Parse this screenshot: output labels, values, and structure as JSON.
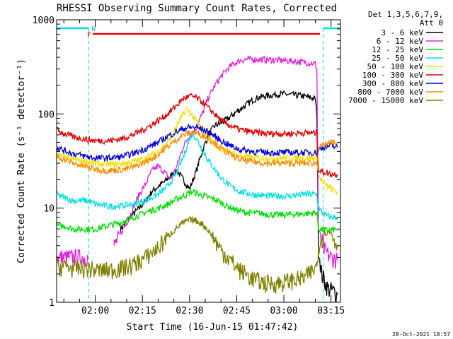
{
  "chart_data": {
    "type": "line",
    "title": "RHESSI Observing Summary Count Rates, Corrected",
    "xlabel": "Start Time (16-Jun-15 01:47:42)",
    "ylabel": "Corrected Count Rate (s⁻¹ detector⁻¹)",
    "yscale": "log",
    "ylim": [
      1,
      1000
    ],
    "xlim": [
      107.7,
      198
    ],
    "x_unit": "minutes after 00:00 UT",
    "x_ticks": [
      {
        "label": "02:00",
        "value": 120
      },
      {
        "label": "02:15",
        "value": 135
      },
      {
        "label": "02:30",
        "value": 150
      },
      {
        "label": "02:45",
        "value": 165
      },
      {
        "label": "03:00",
        "value": 180
      },
      {
        "label": "03:15",
        "value": 195
      }
    ],
    "y_ticks": [
      {
        "label": "1",
        "value": 1
      },
      {
        "label": "10",
        "value": 10
      },
      {
        "label": "100",
        "value": 100
      },
      {
        "label": "1000",
        "value": 1000
      }
    ],
    "legend_header": [
      "Det 1,3,5,6,7,9,",
      "Att 0"
    ],
    "legend_position": "top-right",
    "timestamp": "28-Oct-2021 18:57",
    "flag_labels": {
      "flare": "F",
      "night": "N"
    },
    "night_intervals": [
      [
        107.7,
        117.9
      ],
      [
        192.5,
        198
      ]
    ],
    "flare_interval": [
      119.2,
      191.5
    ],
    "series": [
      {
        "name": "3 - 6 keV",
        "color": "#000000",
        "points": [
          [
            128,
            6
          ],
          [
            131,
            8
          ],
          [
            134,
            10
          ],
          [
            136,
            12
          ],
          [
            138,
            15
          ],
          [
            140,
            17
          ],
          [
            142,
            19
          ],
          [
            144,
            22
          ],
          [
            146,
            25
          ],
          [
            148,
            20
          ],
          [
            150,
            16
          ],
          [
            152,
            24
          ],
          [
            154,
            40
          ],
          [
            156,
            60
          ],
          [
            158,
            75
          ],
          [
            160,
            80
          ],
          [
            162,
            88
          ],
          [
            164,
            100
          ],
          [
            166,
            112
          ],
          [
            168,
            125
          ],
          [
            170,
            140
          ],
          [
            172,
            150
          ],
          [
            174,
            155
          ],
          [
            176,
            158
          ],
          [
            178,
            162
          ],
          [
            180,
            163
          ],
          [
            182,
            160
          ],
          [
            184,
            158
          ],
          [
            186,
            155
          ],
          [
            188,
            150
          ],
          [
            190,
            145
          ],
          [
            190.5,
            95
          ],
          [
            191,
            4
          ],
          [
            192,
            2
          ],
          [
            194,
            1.4
          ],
          [
            196,
            1.3
          ],
          [
            197,
            1.2
          ]
        ]
      },
      {
        "name": "6 - 12 keV",
        "color": "#e020e0",
        "points": [
          [
            107.7,
            3
          ],
          [
            110,
            3
          ],
          [
            112,
            3
          ],
          [
            114,
            3
          ],
          [
            116,
            3
          ],
          [
            117.9,
            3
          ],
          [
            126,
            4
          ],
          [
            130,
            7
          ],
          [
            132,
            10
          ],
          [
            134,
            14
          ],
          [
            136,
            18
          ],
          [
            138,
            25
          ],
          [
            140,
            28
          ],
          [
            142,
            24
          ],
          [
            144,
            20
          ],
          [
            146,
            28
          ],
          [
            148,
            45
          ],
          [
            150,
            60
          ],
          [
            152,
            70
          ],
          [
            154,
            100
          ],
          [
            156,
            150
          ],
          [
            158,
            200
          ],
          [
            160,
            250
          ],
          [
            162,
            300
          ],
          [
            164,
            340
          ],
          [
            166,
            370
          ],
          [
            168,
            380
          ],
          [
            172,
            380
          ],
          [
            176,
            375
          ],
          [
            180,
            370
          ],
          [
            184,
            360
          ],
          [
            188,
            350
          ],
          [
            190,
            340
          ],
          [
            190.5,
            300
          ],
          [
            191,
            6
          ],
          [
            193,
            3.5
          ],
          [
            195,
            3
          ],
          [
            197,
            2.8
          ]
        ]
      },
      {
        "name": "12 - 25 keV",
        "color": "#00e000",
        "points": [
          [
            107.7,
            6.5
          ],
          [
            110,
            6.5
          ],
          [
            113,
            6
          ],
          [
            116,
            6
          ],
          [
            117.9,
            6
          ],
          [
            120,
            6
          ],
          [
            124,
            6.5
          ],
          [
            128,
            7
          ],
          [
            132,
            8
          ],
          [
            136,
            9
          ],
          [
            140,
            10
          ],
          [
            143,
            11
          ],
          [
            146,
            12.5
          ],
          [
            149,
            14
          ],
          [
            151,
            15
          ],
          [
            153,
            14
          ],
          [
            156,
            13
          ],
          [
            159,
            12
          ],
          [
            162,
            10.5
          ],
          [
            165,
            9.5
          ],
          [
            168,
            9
          ],
          [
            172,
            8.8
          ],
          [
            176,
            8.5
          ],
          [
            180,
            8.5
          ],
          [
            184,
            8.6
          ],
          [
            188,
            8.8
          ],
          [
            190.5,
            9
          ],
          [
            191,
            6
          ],
          [
            193,
            5.8
          ],
          [
            195,
            5.8
          ],
          [
            197,
            6
          ]
        ]
      },
      {
        "name": "25 - 50 keV",
        "color": "#00e0e0",
        "points": [
          [
            107.7,
            14
          ],
          [
            110,
            13
          ],
          [
            113,
            12
          ],
          [
            116,
            12
          ],
          [
            117.9,
            12
          ],
          [
            120,
            11
          ],
          [
            124,
            10.5
          ],
          [
            128,
            10.5
          ],
          [
            132,
            11
          ],
          [
            136,
            12
          ],
          [
            140,
            14
          ],
          [
            143,
            17
          ],
          [
            146,
            24
          ],
          [
            148,
            35
          ],
          [
            150,
            55
          ],
          [
            151,
            62
          ],
          [
            152,
            56
          ],
          [
            154,
            42
          ],
          [
            156,
            32
          ],
          [
            158,
            26
          ],
          [
            160,
            21
          ],
          [
            163,
            17
          ],
          [
            166,
            15
          ],
          [
            170,
            14
          ],
          [
            174,
            13.5
          ],
          [
            178,
            13.5
          ],
          [
            182,
            13.5
          ],
          [
            186,
            14
          ],
          [
            188,
            14
          ],
          [
            190.5,
            14
          ],
          [
            191,
            10
          ],
          [
            193,
            8.5
          ],
          [
            195,
            8
          ],
          [
            197,
            8
          ]
        ]
      },
      {
        "name": "50 - 100 keV",
        "color": "#f0e000",
        "points": [
          [
            107.7,
            37
          ],
          [
            110,
            35
          ],
          [
            113,
            33
          ],
          [
            116,
            32
          ],
          [
            117.9,
            31
          ],
          [
            120,
            30
          ],
          [
            124,
            29
          ],
          [
            128,
            29.5
          ],
          [
            132,
            31
          ],
          [
            136,
            34
          ],
          [
            140,
            40
          ],
          [
            143,
            50
          ],
          [
            146,
            75
          ],
          [
            148,
            100
          ],
          [
            149,
            115
          ],
          [
            150,
            105
          ],
          [
            152,
            85
          ],
          [
            154,
            70
          ],
          [
            156,
            58
          ],
          [
            158,
            49
          ],
          [
            160,
            43
          ],
          [
            163,
            39
          ],
          [
            166,
            36
          ],
          [
            170,
            34
          ],
          [
            174,
            34
          ],
          [
            178,
            34
          ],
          [
            182,
            34
          ],
          [
            186,
            34
          ],
          [
            188,
            34
          ],
          [
            190.5,
            34
          ],
          [
            191,
            22
          ],
          [
            193,
            18
          ],
          [
            195,
            16
          ],
          [
            197,
            15
          ]
        ]
      },
      {
        "name": "100 - 300 keV",
        "color": "#e00000",
        "points": [
          [
            107.7,
            68
          ],
          [
            110,
            62
          ],
          [
            113,
            57
          ],
          [
            116,
            55
          ],
          [
            117.9,
            53
          ],
          [
            120,
            52
          ],
          [
            124,
            52
          ],
          [
            128,
            54
          ],
          [
            132,
            60
          ],
          [
            136,
            70
          ],
          [
            140,
            85
          ],
          [
            143,
            100
          ],
          [
            146,
            125
          ],
          [
            148,
            145
          ],
          [
            150,
            155
          ],
          [
            152,
            150
          ],
          [
            154,
            135
          ],
          [
            156,
            115
          ],
          [
            158,
            100
          ],
          [
            160,
            85
          ],
          [
            163,
            75
          ],
          [
            166,
            68
          ],
          [
            170,
            64
          ],
          [
            174,
            62
          ],
          [
            178,
            62
          ],
          [
            182,
            62
          ],
          [
            186,
            63
          ],
          [
            188,
            63
          ],
          [
            190.5,
            63
          ],
          [
            191,
            25
          ],
          [
            193,
            24
          ],
          [
            195,
            23
          ],
          [
            197,
            23
          ]
        ]
      },
      {
        "name": "300 - 800 keV",
        "color": "#0000e0",
        "points": [
          [
            107.7,
            44
          ],
          [
            110,
            41
          ],
          [
            113,
            38
          ],
          [
            116,
            36
          ],
          [
            117.9,
            35
          ],
          [
            120,
            34
          ],
          [
            124,
            34
          ],
          [
            128,
            35
          ],
          [
            132,
            38
          ],
          [
            136,
            43
          ],
          [
            140,
            50
          ],
          [
            143,
            58
          ],
          [
            146,
            65
          ],
          [
            148,
            70
          ],
          [
            150,
            72
          ],
          [
            152,
            72
          ],
          [
            154,
            69
          ],
          [
            156,
            64
          ],
          [
            158,
            58
          ],
          [
            160,
            52
          ],
          [
            163,
            46
          ],
          [
            166,
            42
          ],
          [
            170,
            40
          ],
          [
            174,
            39
          ],
          [
            178,
            39
          ],
          [
            182,
            39
          ],
          [
            186,
            39
          ],
          [
            188,
            39
          ],
          [
            190.5,
            39
          ],
          [
            191,
            42
          ],
          [
            193,
            45
          ],
          [
            195,
            46
          ],
          [
            197,
            44
          ]
        ]
      },
      {
        "name": "800 - 7000 keV",
        "color": "#ff8c00",
        "points": [
          [
            107.7,
            36
          ],
          [
            110,
            33
          ],
          [
            113,
            30
          ],
          [
            116,
            28
          ],
          [
            117.9,
            27
          ],
          [
            120,
            26
          ],
          [
            124,
            25
          ],
          [
            128,
            25.5
          ],
          [
            132,
            27
          ],
          [
            136,
            31
          ],
          [
            140,
            37
          ],
          [
            143,
            45
          ],
          [
            146,
            54
          ],
          [
            148,
            60
          ],
          [
            150,
            63
          ],
          [
            152,
            63
          ],
          [
            154,
            60
          ],
          [
            156,
            55
          ],
          [
            158,
            49
          ],
          [
            160,
            43
          ],
          [
            163,
            37
          ],
          [
            166,
            33
          ],
          [
            170,
            31
          ],
          [
            174,
            30
          ],
          [
            178,
            30
          ],
          [
            182,
            30
          ],
          [
            186,
            30
          ],
          [
            188,
            30
          ],
          [
            190.5,
            30
          ],
          [
            191,
            43
          ],
          [
            193,
            47
          ],
          [
            195,
            50
          ],
          [
            197,
            49
          ]
        ]
      },
      {
        "name": "7000 - 15000 keV",
        "color": "#808000",
        "points": [
          [
            107.7,
            2.4
          ],
          [
            110,
            2.4
          ],
          [
            113,
            2.3
          ],
          [
            116,
            2.3
          ],
          [
            117.9,
            2.3
          ],
          [
            120,
            2.2
          ],
          [
            124,
            2.2
          ],
          [
            128,
            2.3
          ],
          [
            132,
            2.5
          ],
          [
            136,
            3
          ],
          [
            140,
            3.8
          ],
          [
            143,
            5
          ],
          [
            146,
            6.2
          ],
          [
            148,
            7
          ],
          [
            150,
            7.5
          ],
          [
            152,
            7.4
          ],
          [
            154,
            6.8
          ],
          [
            156,
            5.8
          ],
          [
            158,
            4.6
          ],
          [
            160,
            3.6
          ],
          [
            163,
            2.8
          ],
          [
            166,
            2.2
          ],
          [
            170,
            1.8
          ],
          [
            174,
            1.6
          ],
          [
            178,
            1.6
          ],
          [
            182,
            1.7
          ],
          [
            186,
            1.8
          ],
          [
            188,
            2
          ],
          [
            190.5,
            2.4
          ],
          [
            191,
            4
          ],
          [
            193,
            5.5
          ],
          [
            195,
            5.5
          ],
          [
            197,
            4
          ]
        ]
      }
    ]
  }
}
